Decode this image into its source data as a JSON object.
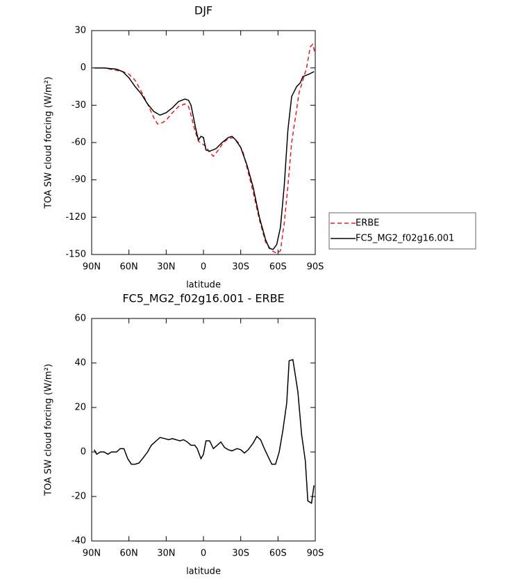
{
  "chart_data": [
    {
      "type": "line",
      "title": "DJF",
      "xlabel": "latitude",
      "ylabel": "TOA SW cloud forcing (W/m²)",
      "xlim": [
        90,
        -90
      ],
      "xticks": [
        {
          "value": 90,
          "label": "90N"
        },
        {
          "value": 60,
          "label": "60N"
        },
        {
          "value": 30,
          "label": "30N"
        },
        0,
        {
          "value": -30,
          "label": "30S"
        },
        {
          "value": -60,
          "label": "60S"
        },
        {
          "value": -90,
          "label": "90S"
        }
      ],
      "ylim": [
        -150,
        30
      ],
      "yticks": [
        -150,
        -120,
        -90,
        -60,
        -30,
        0,
        30
      ],
      "legend": "right",
      "series": [
        {
          "name": "ERBE",
          "color": "#e8191c",
          "dashed": true,
          "x": [
            88,
            80,
            75,
            70,
            65,
            60,
            55,
            50,
            45,
            40,
            37,
            33,
            30,
            25,
            20,
            15,
            12,
            10,
            7,
            4,
            1,
            -2,
            -5,
            -8,
            -12,
            -16,
            -20,
            -24,
            -28,
            -32,
            -36,
            -40,
            -45,
            -50,
            -55,
            -59,
            -62,
            -65,
            -68,
            -71,
            -74,
            -77,
            -80,
            -83,
            -86,
            -88,
            -90
          ],
          "values": [
            0,
            0,
            -1,
            -2,
            -3,
            -5,
            -10,
            -19,
            -29,
            -40,
            -45,
            -44,
            -42,
            -36,
            -31,
            -29,
            -31,
            -38,
            -50,
            -59,
            -61,
            -63,
            -68,
            -71,
            -66,
            -60,
            -57,
            -56,
            -60,
            -68,
            -84,
            -100,
            -122,
            -140,
            -147,
            -149,
            -147,
            -125,
            -95,
            -60,
            -40,
            -20,
            -10,
            0,
            17,
            19,
            11
          ]
        },
        {
          "name": "FC5_MG2_f02g16.001",
          "color": "#000000",
          "dashed": false,
          "x": [
            88,
            80,
            70,
            65,
            60,
            55,
            50,
            45,
            40,
            35,
            30,
            25,
            20,
            15,
            12,
            10,
            6,
            4,
            2,
            0,
            -2,
            -5,
            -10,
            -15,
            -20,
            -23,
            -26,
            -30,
            -35,
            -40,
            -45,
            -50,
            -53,
            -56,
            -59,
            -62,
            -65,
            -68,
            -71,
            -75,
            -78,
            -80,
            -85,
            -89
          ],
          "values": [
            0,
            0,
            -1,
            -3,
            -8,
            -15,
            -21,
            -29,
            -35,
            -38,
            -36,
            -32,
            -27,
            -25,
            -26,
            -30,
            -50,
            -58,
            -55,
            -56,
            -66,
            -67,
            -65,
            -60,
            -56,
            -55,
            -58,
            -64,
            -78,
            -96,
            -120,
            -138,
            -145,
            -146,
            -142,
            -128,
            -95,
            -50,
            -23,
            -15,
            -12,
            -7,
            -5,
            -3
          ]
        }
      ]
    },
    {
      "type": "line",
      "title": "FC5_MG2_f02g16.001 - ERBE",
      "xlabel": "latitude",
      "ylabel": "TOA SW cloud forcing (W/m²)",
      "xlim": [
        90,
        -90
      ],
      "xticks": [
        {
          "value": 90,
          "label": "90N"
        },
        {
          "value": 60,
          "label": "60N"
        },
        {
          "value": 30,
          "label": "30N"
        },
        0,
        {
          "value": -30,
          "label": "30S"
        },
        {
          "value": -60,
          "label": "60S"
        },
        {
          "value": -90,
          "label": "90S"
        }
      ],
      "ylim": [
        -40,
        60
      ],
      "yticks": [
        -40,
        -20,
        0,
        20,
        40,
        60
      ],
      "series": [
        {
          "color": "#000000",
          "dashed": false,
          "x": [
            88,
            86,
            83,
            80,
            77,
            74,
            70,
            67,
            64,
            61,
            58,
            55,
            52,
            49,
            45,
            42,
            38,
            35,
            31,
            28,
            25,
            22,
            19,
            16,
            13,
            10,
            7,
            5,
            2,
            0,
            -2,
            -5,
            -8,
            -11,
            -14,
            -17,
            -20,
            -23,
            -27,
            -30,
            -33,
            -36,
            -40,
            -43,
            -46,
            -49,
            -52,
            -55,
            -58,
            -61,
            -64,
            -67,
            -69,
            -72,
            -76,
            -79,
            -82,
            -84,
            -87,
            -89
          ],
          "values": [
            1,
            -1,
            0,
            0,
            -1,
            0,
            0,
            1.5,
            1.5,
            -3,
            -5.5,
            -5.5,
            -5,
            -3,
            0,
            3,
            5,
            6.5,
            6,
            5.5,
            6,
            5.5,
            5,
            5.5,
            4.5,
            3,
            3,
            1.5,
            -3,
            -1,
            5,
            5,
            1.5,
            3,
            4.5,
            2,
            1,
            0.5,
            1.5,
            1,
            -0.5,
            1,
            4,
            7,
            5.5,
            1.5,
            -2,
            -5.5,
            -5.5,
            0,
            10,
            22,
            41,
            41.5,
            27,
            8,
            -4,
            -22,
            -23,
            -15
          ]
        }
      ]
    }
  ]
}
